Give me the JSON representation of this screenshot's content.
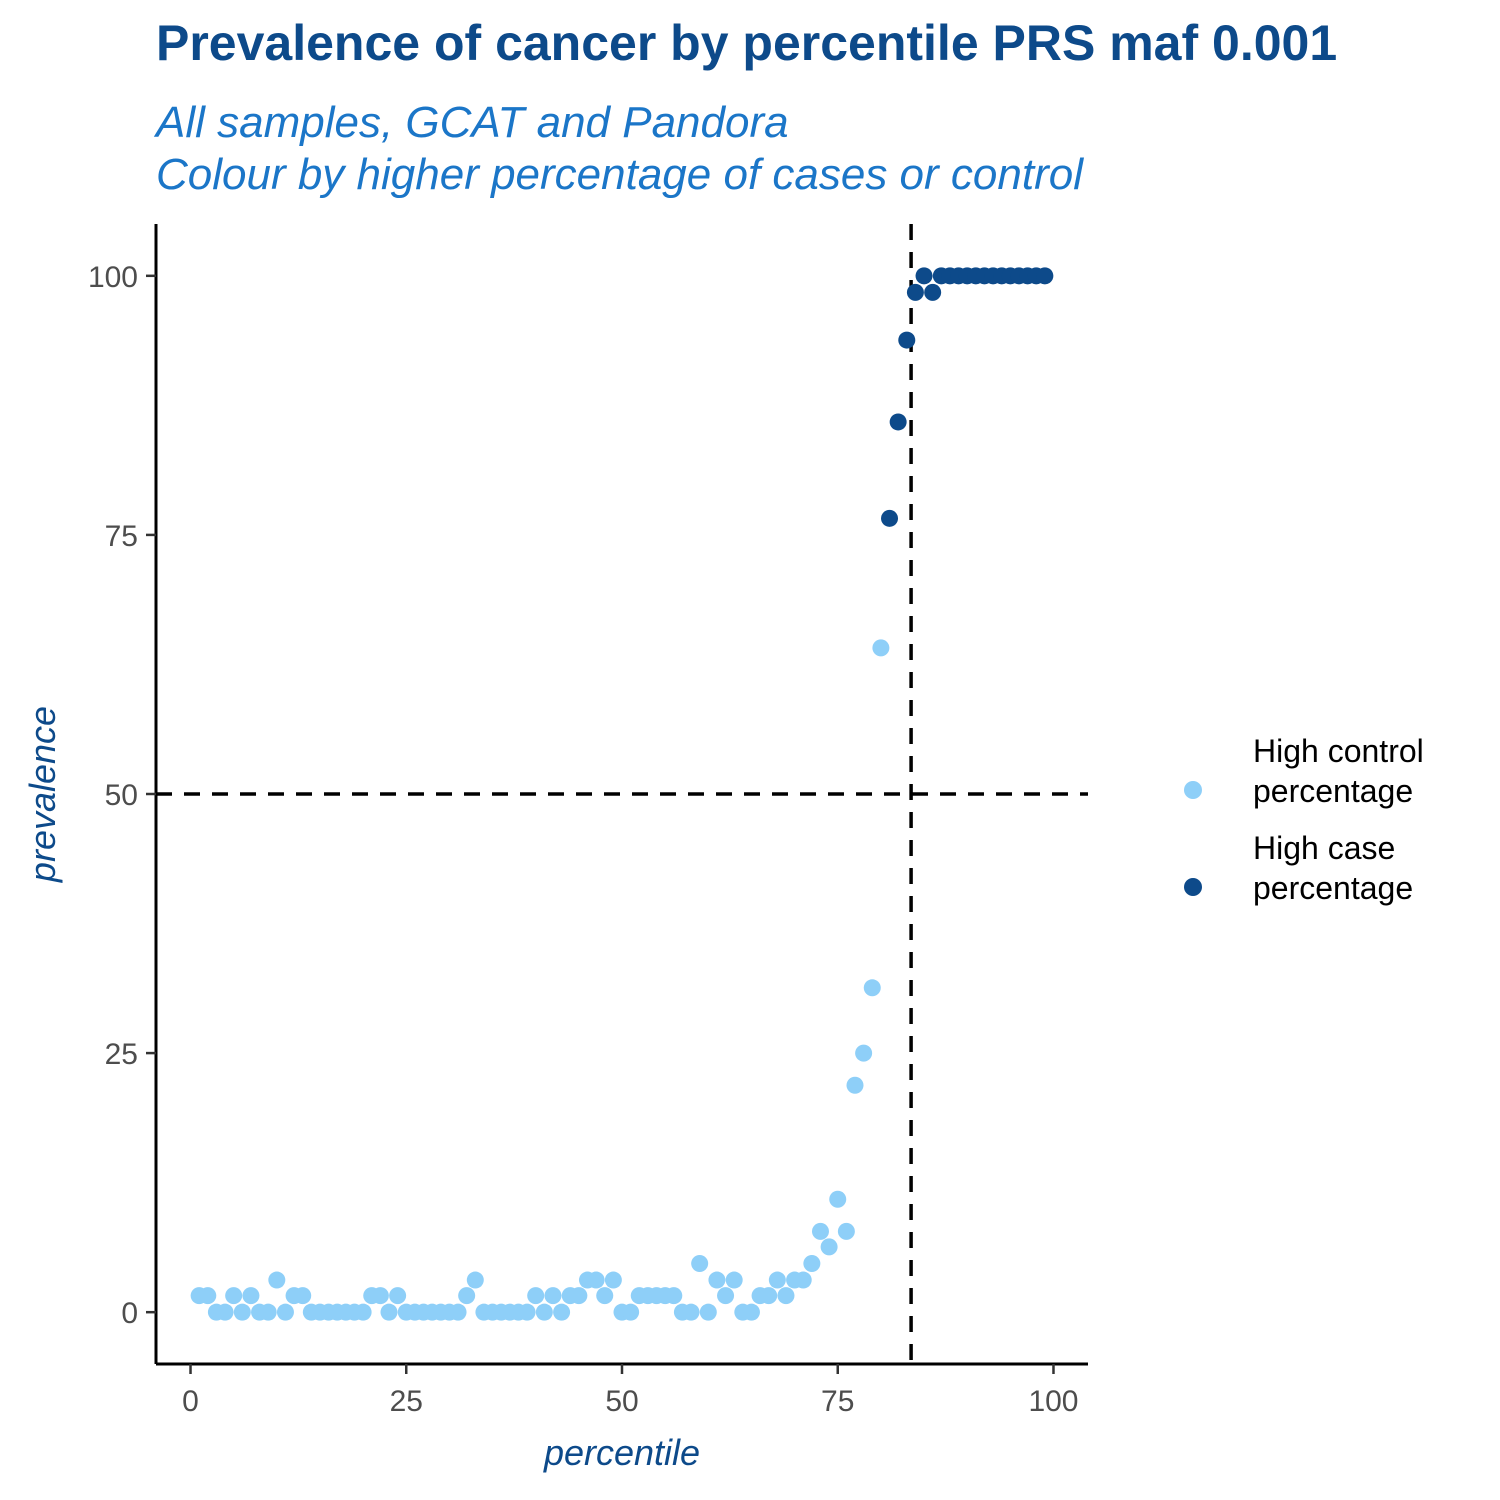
{
  "chart_data": {
    "type": "scatter",
    "title": "Prevalence of cancer by percentile PRS maf 0.001",
    "subtitle": [
      "All samples, GCAT and Pandora",
      "Colour by higher percentage of cases or control"
    ],
    "xlabel": "percentile",
    "ylabel": "prevalence",
    "xlim": [
      -4,
      104
    ],
    "ylim": [
      -5,
      105
    ],
    "xticks": [
      0,
      25,
      50,
      75,
      100
    ],
    "yticks": [
      0,
      25,
      50,
      75,
      100
    ],
    "grid": false,
    "legend_position": "right",
    "reference_lines": {
      "hline": 50,
      "vline": 83.5
    },
    "series": [
      {
        "name": "High control\npercentage",
        "color": "#8ecff8",
        "x": [
          1,
          2,
          3,
          4,
          5,
          6,
          7,
          8,
          9,
          10,
          11,
          12,
          13,
          14,
          15,
          16,
          17,
          18,
          19,
          20,
          21,
          22,
          23,
          24,
          25,
          26,
          27,
          28,
          29,
          30,
          31,
          32,
          33,
          34,
          35,
          36,
          37,
          38,
          39,
          40,
          41,
          42,
          43,
          44,
          45,
          46,
          47,
          48,
          49,
          50,
          51,
          52,
          53,
          54,
          55,
          56,
          57,
          58,
          59,
          60,
          61,
          62,
          63,
          64,
          65,
          66,
          67,
          68,
          69,
          70,
          71,
          72,
          73,
          74,
          75,
          76,
          77,
          78,
          79,
          80
        ],
        "y": [
          1.6,
          1.6,
          0,
          0,
          1.6,
          0,
          1.6,
          0,
          0,
          3.1,
          0,
          1.6,
          1.6,
          0,
          0,
          0,
          0,
          0,
          0,
          0,
          1.6,
          1.6,
          0,
          1.6,
          0,
          0,
          0,
          0,
          0,
          0,
          0,
          1.6,
          3.1,
          0,
          0,
          0,
          0,
          0,
          0,
          1.6,
          0,
          1.6,
          0,
          1.6,
          1.6,
          3.1,
          3.1,
          1.6,
          3.1,
          0,
          0,
          1.6,
          1.6,
          1.6,
          1.6,
          1.6,
          0,
          0,
          4.7,
          0,
          3.1,
          1.6,
          3.1,
          0,
          0,
          1.6,
          1.6,
          3.1,
          1.6,
          3.1,
          3.1,
          4.7,
          7.8,
          6.3,
          10.9,
          7.8,
          21.9,
          25,
          31.3,
          64.1
        ]
      },
      {
        "name": "High case\npercentage",
        "color": "#0d4a8a",
        "x": [
          81,
          82,
          83,
          84,
          85,
          86,
          87,
          88,
          89,
          90,
          91,
          92,
          93,
          94,
          95,
          96,
          97,
          98,
          99
        ],
        "y": [
          76.6,
          85.9,
          93.8,
          98.4,
          100,
          98.4,
          100,
          100,
          100,
          100,
          100,
          100,
          100,
          100,
          100,
          100,
          100,
          100,
          100
        ]
      }
    ]
  }
}
